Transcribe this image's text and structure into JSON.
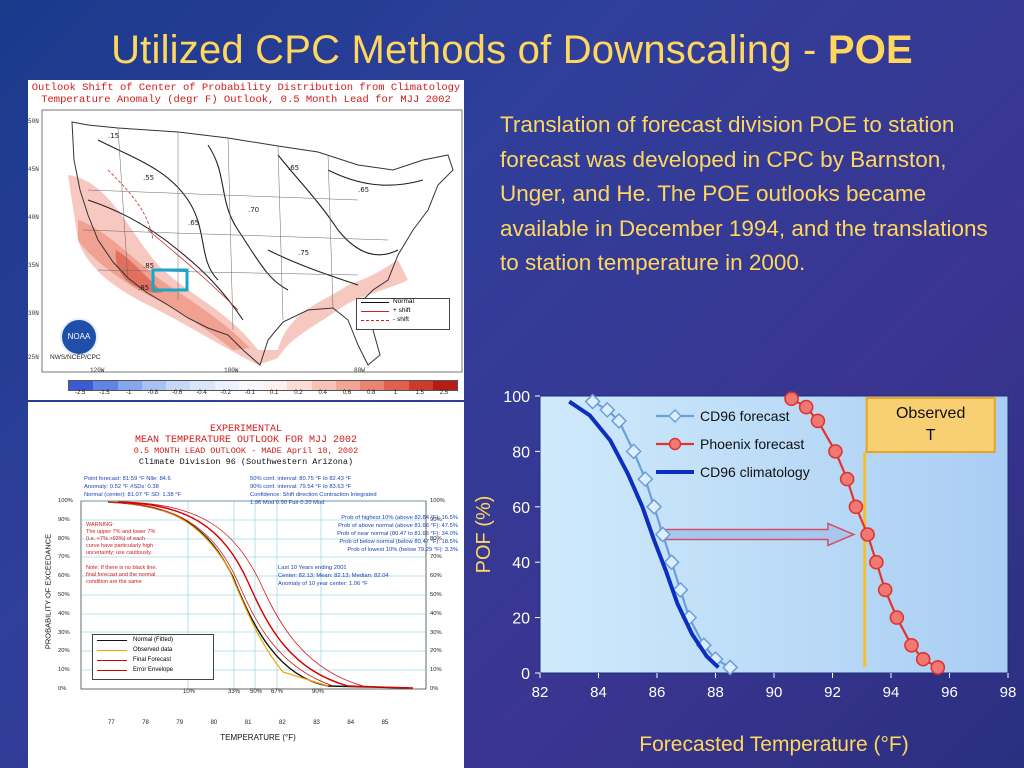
{
  "slide": {
    "title_main": "Utilized CPC Methods of Downscaling - ",
    "title_bold": "POE",
    "body_text": "Translation of forecast division POE to station forecast was developed in CPC by Barnston, Unger, and He. The POE outlooks became available in December 1994, and the translations to station temperature in 2000."
  },
  "map": {
    "title_line1": "Outlook Shift of Center of Probability Distribution from Climatology",
    "title_line2": "Temperature Anomaly (degr F) Outlook, 0.5 Month Lead for MJJ 2002",
    "lat_labels": [
      "50N",
      "45N",
      "40N",
      "35N",
      "30N",
      "25N"
    ],
    "lon_labels": [
      "120W",
      "100W",
      "80W"
    ],
    "logo_text": "NOAA",
    "agency": "NWS/NCEP/CPC",
    "legend": [
      "Normal",
      "+ shift",
      "- shift"
    ],
    "scale_values": [
      "-2.5",
      "-1.5",
      "-1",
      "-0.8",
      "-0.6",
      "-0.4",
      "-0.2",
      "-0.1",
      "0.1",
      "0.2",
      "0.4",
      "0.6",
      "0.8",
      "1",
      "1.5",
      "2.5"
    ],
    "scale_colors": [
      "#3b5bd6",
      "#5f86e6",
      "#86a7ef",
      "#a8c2f4",
      "#c6d7f8",
      "#dbe6fb",
      "#ecf1fd",
      "#f7f9fe",
      "#fdf2f0",
      "#fbdcd6",
      "#f8c2b8",
      "#f3a597",
      "#ec8473",
      "#e15f4c",
      "#cf3a2a",
      "#b71c14"
    ]
  },
  "outlook": {
    "title1": "EXPERIMENTAL",
    "title2": "MEAN TEMPERATURE OUTLOOK FOR MJJ 2002",
    "title3": "0.5 MONTH LEAD OUTLOOK - MADE April 18, 2002",
    "subtitle": "Climate Division 96 (Southwestern Arizona)",
    "stats": [
      "Point forecast: 81.59 °F   Nlle: 84.6",
      "Anomaly: 0.52 °F   #SDs: 0.38",
      "Normal (center): 81.07 °F   SD: 1.38 °F"
    ],
    "conf": [
      "50% conf. interval: 80.75 °F to 82.43 °F",
      "90% conf. interval: 79.54 °F to 83.63 °F",
      "Confidence: Shift direction  Contraction  Integrated",
      "1.96 Mod   0.90 Fair   0.20 Mod"
    ],
    "probs": [
      "Prob of highest 10% (above 82.84 °F): 16.5%",
      "Prob of above normal (above 81.66 °F): 47.5%",
      "Prob of near normal (80.47 to 81.66 °F): 34.0%",
      "Prob of below normal (below 80.47 °F): 18.5%",
      "Prob of lowest 10% (below 79.29 °F): 3.3%"
    ],
    "last10": [
      "Last 10 Years ending 2001",
      "Center: 82.13; Mean: 82.13; Median: 82.04",
      "Anomaly of 10 year center: 1.06 °F"
    ],
    "warning": [
      "WARNING:",
      "The upper 7% and lower 7%",
      "(i.e. <7% >93%) of each",
      "curve have particularly high",
      "uncertainty; use cautiously."
    ],
    "note": [
      "Note: If there is no black line,",
      "final forecast and the normal",
      "condition are the same"
    ],
    "ylabel": "PROBABILITY OF EXCEEDANCE",
    "xlabel": "TEMPERATURE (°F)",
    "yticks": [
      "100%",
      "90%",
      "80%",
      "70%",
      "60%",
      "50%",
      "40%",
      "30%",
      "20%",
      "10%",
      "0%"
    ],
    "xticks": [
      "77",
      "78",
      "79",
      "80",
      "81",
      "82",
      "83",
      "84",
      "85"
    ],
    "pct_markers": [
      "10%",
      "33%",
      "50%",
      "67%",
      "90%"
    ],
    "legend": [
      "Normal (Fitted)",
      "Observed data",
      "Final Forecast",
      "Error Envelope"
    ]
  },
  "poe_chart": {
    "observed_label_1": "Observed",
    "observed_label_2": "T"
  },
  "chart_data": {
    "type": "line",
    "xlabel": "Forecasted Temperature (°F)",
    "ylabel": "POF (%)",
    "xlim": [
      82,
      98
    ],
    "ylim": [
      0,
      100
    ],
    "xticks": [
      82,
      84,
      86,
      88,
      90,
      92,
      94,
      96,
      98
    ],
    "yticks": [
      0,
      20,
      40,
      60,
      80,
      100
    ],
    "legend_position": "top-center",
    "observed_T": 93.1,
    "series": [
      {
        "name": "CD96 forecast",
        "color": "#6b9fd8",
        "marker": "diamond",
        "x": [
          83.8,
          84.3,
          84.7,
          85.2,
          85.6,
          85.9,
          86.2,
          86.5,
          86.8,
          87.1,
          87.6,
          88.0,
          88.5
        ],
        "y": [
          98,
          95,
          91,
          80,
          70,
          60,
          50,
          40,
          30,
          20,
          10,
          5,
          2
        ]
      },
      {
        "name": "Phoenix forecast",
        "color": "#e2342f",
        "marker": "circle",
        "x": [
          90.6,
          91.1,
          91.5,
          92.1,
          92.5,
          92.8,
          93.2,
          93.5,
          93.8,
          94.2,
          94.7,
          95.1,
          95.6
        ],
        "y": [
          99,
          96,
          91,
          80,
          70,
          60,
          50,
          40,
          30,
          20,
          10,
          5,
          2
        ]
      },
      {
        "name": "CD96 climatology",
        "color": "#0b2fbf",
        "marker": "none",
        "x": [
          83.0,
          83.7,
          84.4,
          85.0,
          85.5,
          85.9,
          86.3,
          86.7,
          87.2,
          87.7,
          88.1
        ],
        "y": [
          98,
          93,
          84,
          72,
          60,
          48,
          37,
          25,
          14,
          6,
          2
        ]
      }
    ]
  }
}
